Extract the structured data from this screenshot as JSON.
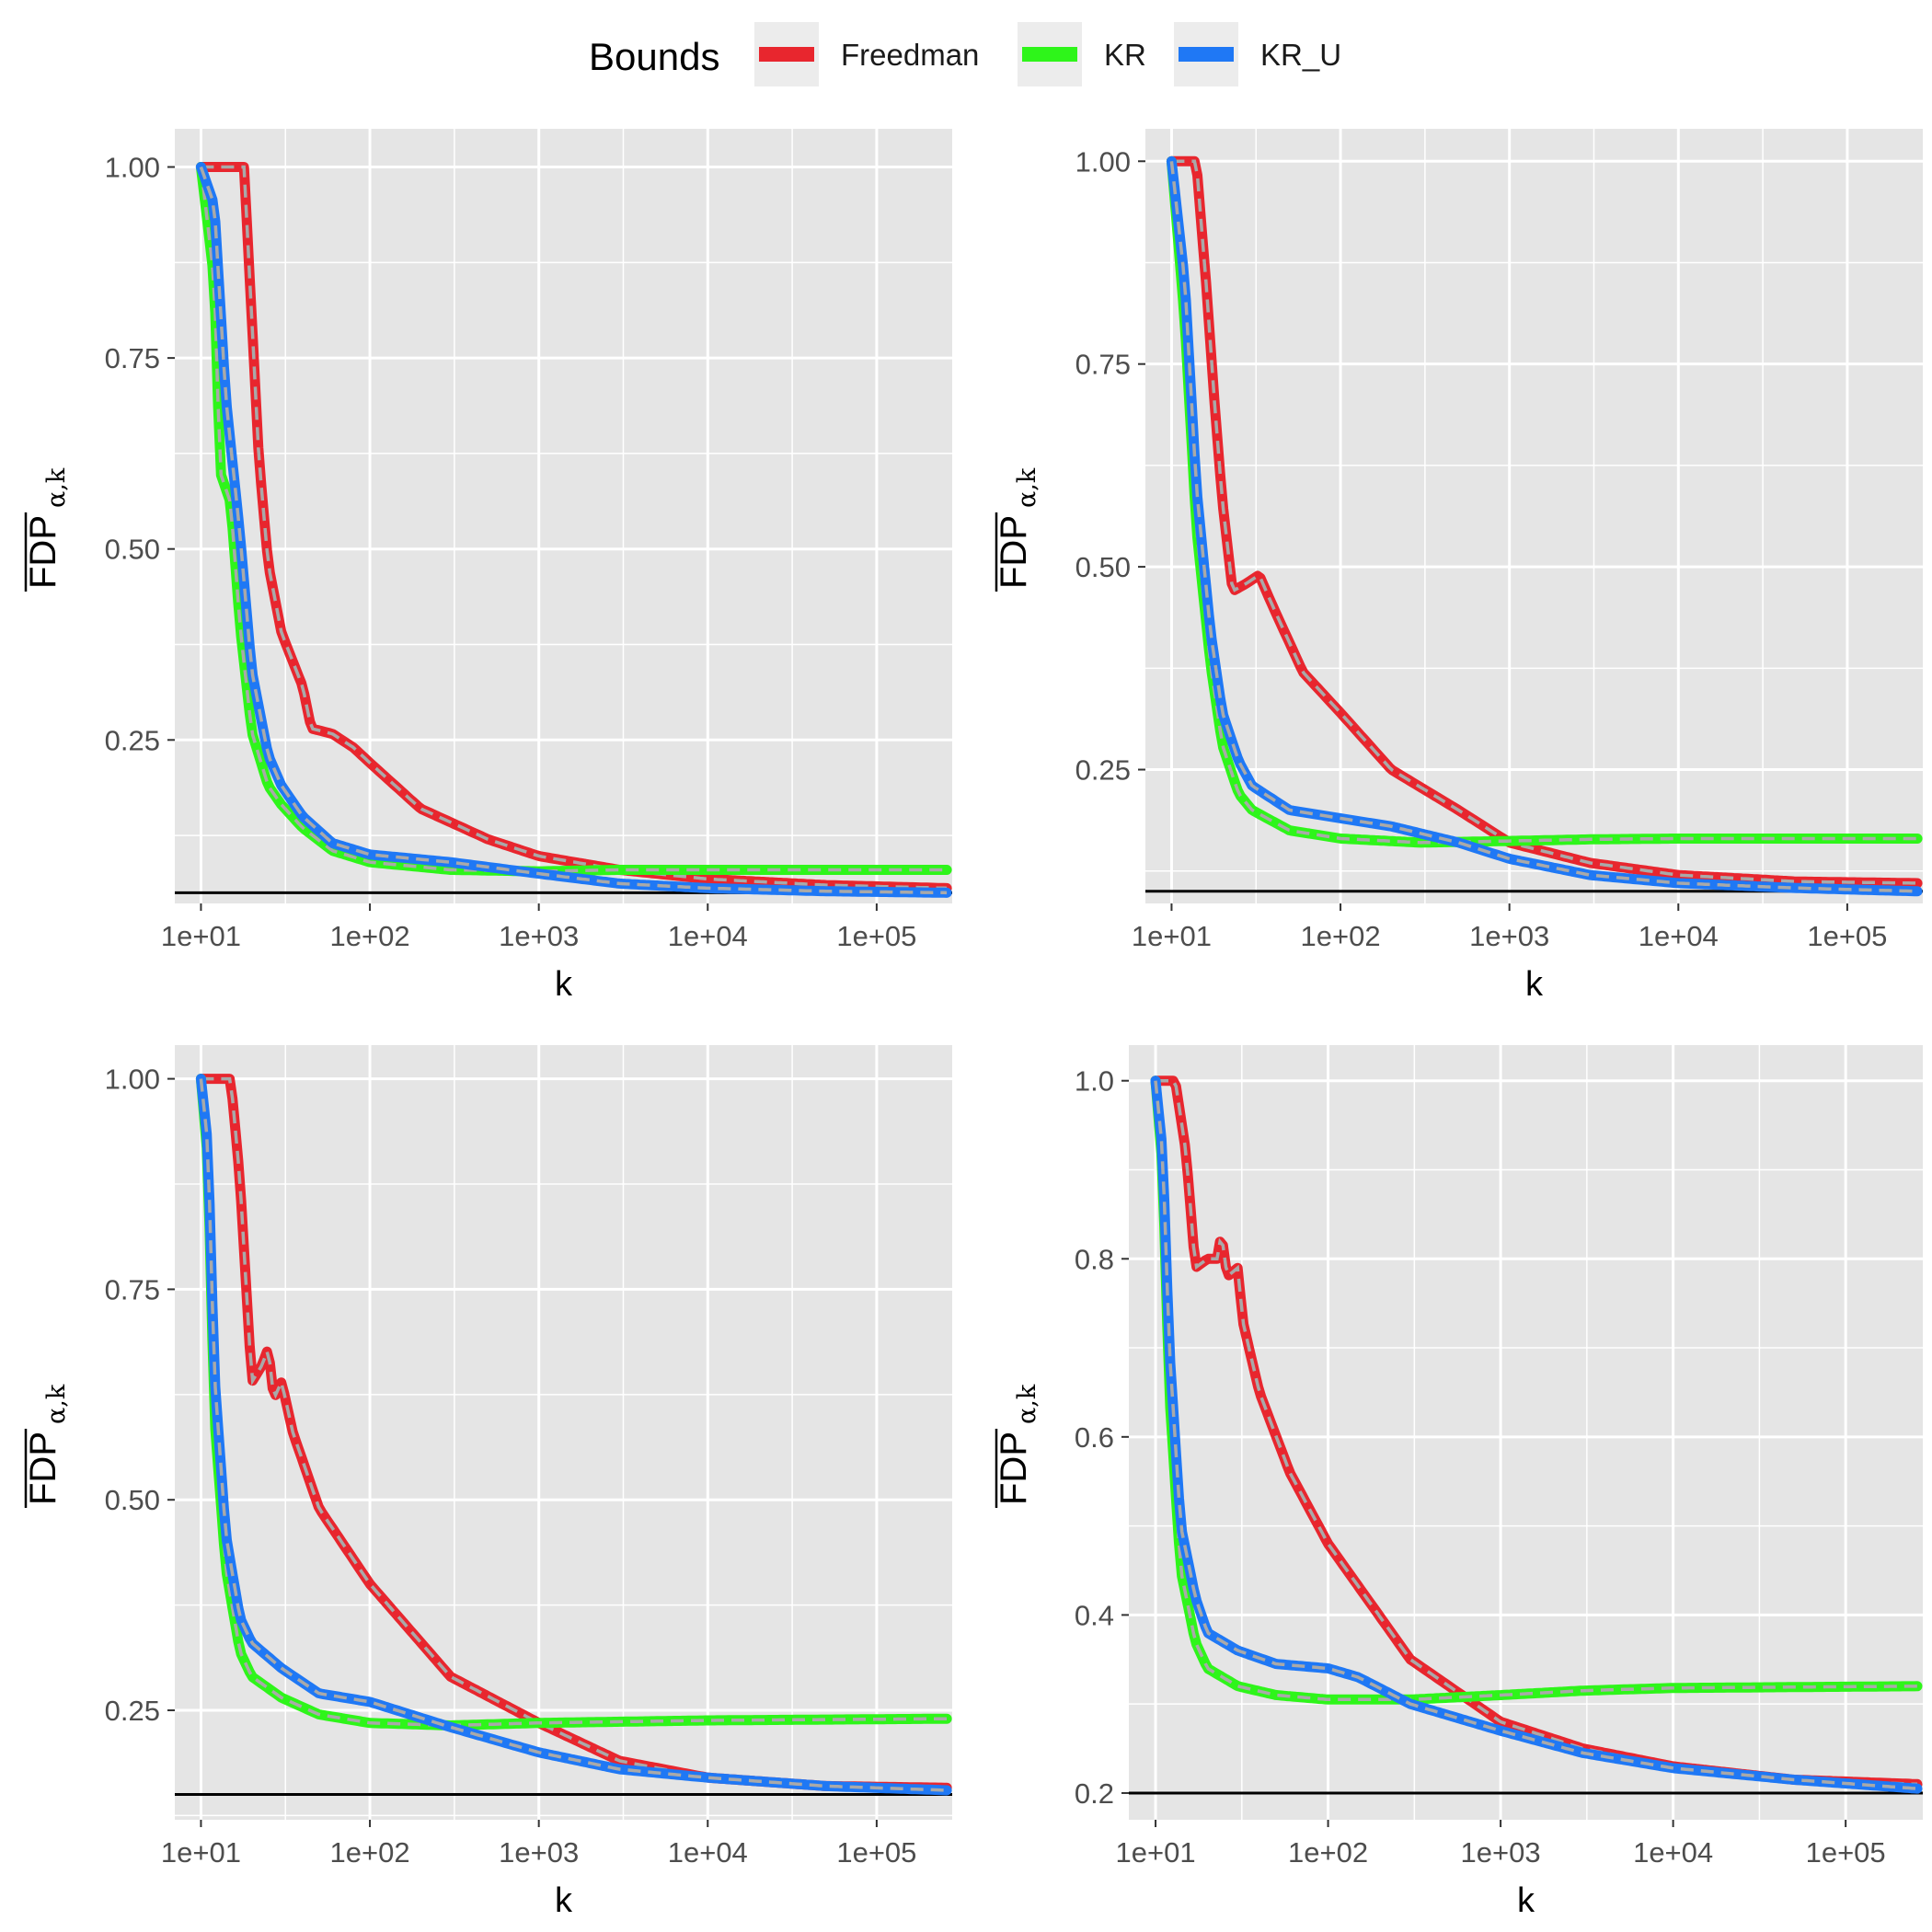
{
  "legend": {
    "title": "Bounds",
    "items": [
      {
        "label": "Freedman",
        "color": "#E8262E"
      },
      {
        "label": "KR",
        "color": "#2EF51A"
      },
      {
        "label": "KR_U",
        "color": "#1F78F5"
      }
    ]
  },
  "colors": {
    "panel_bg": "#E5E5E5",
    "grid": "#FFFFFF",
    "dashed_overlay": "#A9A9A9",
    "reference_line": "#000000",
    "background": "#FFFFFF"
  },
  "chart_data": [
    {
      "type": "line",
      "xscale": "log10",
      "xlim": [
        7,
        280000
      ],
      "ylim": [
        0.036,
        1.05
      ],
      "xlabel": "k",
      "ylabel": "FDP",
      "ylabel_subscript": "α,k",
      "x_ticks": [
        10,
        100,
        1000,
        10000,
        100000
      ],
      "x_tick_labels": [
        "1e+01",
        "1e+02",
        "1e+03",
        "1e+04",
        "1e+05"
      ],
      "y_ticks": [
        0.25,
        0.5,
        0.75,
        1.0
      ],
      "y_tick_labels": [
        "0.25",
        "0.50",
        "0.75",
        "1.00"
      ],
      "reference_line": 0.05,
      "grid": true,
      "series": [
        {
          "name": "Freedman",
          "points": [
            [
              10,
              1.0
            ],
            [
              18,
              1.0
            ],
            [
              20,
              0.8
            ],
            [
              22,
              0.62
            ],
            [
              25,
              0.48
            ],
            [
              30,
              0.39
            ],
            [
              40,
              0.32
            ],
            [
              45,
              0.265
            ],
            [
              60,
              0.258
            ],
            [
              80,
              0.24
            ],
            [
              100,
              0.22
            ],
            [
              200,
              0.16
            ],
            [
              500,
              0.12
            ],
            [
              1000,
              0.098
            ],
            [
              3000,
              0.08
            ],
            [
              10000,
              0.068
            ],
            [
              50000,
              0.06
            ],
            [
              260000,
              0.056
            ]
          ]
        },
        {
          "name": "KR",
          "points": [
            [
              10,
              1.0
            ],
            [
              12,
              0.85
            ],
            [
              13,
              0.6
            ],
            [
              15,
              0.56
            ],
            [
              17,
              0.4
            ],
            [
              20,
              0.26
            ],
            [
              25,
              0.19
            ],
            [
              30,
              0.165
            ],
            [
              40,
              0.135
            ],
            [
              60,
              0.105
            ],
            [
              100,
              0.09
            ],
            [
              300,
              0.08
            ],
            [
              1000,
              0.078
            ],
            [
              3000,
              0.08
            ],
            [
              10000,
              0.08
            ],
            [
              260000,
              0.08
            ]
          ]
        },
        {
          "name": "KR_U",
          "points": [
            [
              10,
              1.0
            ],
            [
              12,
              0.95
            ],
            [
              14,
              0.7
            ],
            [
              17,
              0.52
            ],
            [
              20,
              0.34
            ],
            [
              25,
              0.23
            ],
            [
              30,
              0.19
            ],
            [
              40,
              0.15
            ],
            [
              60,
              0.115
            ],
            [
              100,
              0.1
            ],
            [
              300,
              0.09
            ],
            [
              1000,
              0.075
            ],
            [
              3000,
              0.062
            ],
            [
              10000,
              0.056
            ],
            [
              50000,
              0.052
            ],
            [
              260000,
              0.05
            ]
          ]
        }
      ]
    },
    {
      "type": "line",
      "xscale": "log10",
      "xlim": [
        7,
        280000
      ],
      "ylim": [
        0.085,
        1.04
      ],
      "xlabel": "k",
      "ylabel": "FDP",
      "ylabel_subscript": "α,k",
      "x_ticks": [
        10,
        100,
        1000,
        10000,
        100000
      ],
      "x_tick_labels": [
        "1e+01",
        "1e+02",
        "1e+03",
        "1e+04",
        "1e+05"
      ],
      "y_ticks": [
        0.25,
        0.5,
        0.75,
        1.0
      ],
      "y_tick_labels": [
        "0.25",
        "0.50",
        "0.75",
        "1.00"
      ],
      "reference_line": 0.1,
      "grid": true,
      "series": [
        {
          "name": "Freedman",
          "points": [
            [
              10,
              1.0
            ],
            [
              14,
              1.0
            ],
            [
              16,
              0.85
            ],
            [
              18,
              0.7
            ],
            [
              20,
              0.58
            ],
            [
              23,
              0.47
            ],
            [
              28,
              0.48
            ],
            [
              33,
              0.49
            ],
            [
              40,
              0.45
            ],
            [
              60,
              0.37
            ],
            [
              100,
              0.32
            ],
            [
              200,
              0.25
            ],
            [
              500,
              0.2
            ],
            [
              1000,
              0.16
            ],
            [
              3000,
              0.135
            ],
            [
              10000,
              0.12
            ],
            [
              50000,
              0.112
            ],
            [
              260000,
              0.11
            ]
          ]
        },
        {
          "name": "KR",
          "points": [
            [
              10,
              1.0
            ],
            [
              12,
              0.8
            ],
            [
              14,
              0.55
            ],
            [
              17,
              0.38
            ],
            [
              20,
              0.28
            ],
            [
              25,
              0.22
            ],
            [
              30,
              0.2
            ],
            [
              50,
              0.175
            ],
            [
              100,
              0.165
            ],
            [
              300,
              0.16
            ],
            [
              1000,
              0.162
            ],
            [
              3000,
              0.164
            ],
            [
              10000,
              0.165
            ],
            [
              260000,
              0.165
            ]
          ]
        },
        {
          "name": "KR_U",
          "points": [
            [
              10,
              1.0
            ],
            [
              12,
              0.85
            ],
            [
              14,
              0.6
            ],
            [
              17,
              0.42
            ],
            [
              20,
              0.32
            ],
            [
              25,
              0.26
            ],
            [
              30,
              0.23
            ],
            [
              50,
              0.2
            ],
            [
              100,
              0.19
            ],
            [
              200,
              0.18
            ],
            [
              500,
              0.16
            ],
            [
              1000,
              0.14
            ],
            [
              3000,
              0.12
            ],
            [
              10000,
              0.11
            ],
            [
              50000,
              0.104
            ],
            [
              260000,
              0.1
            ]
          ]
        }
      ]
    },
    {
      "type": "line",
      "xscale": "log10",
      "xlim": [
        7,
        280000
      ],
      "ylim": [
        0.12,
        1.04
      ],
      "xlabel": "k",
      "ylabel": "FDP",
      "ylabel_subscript": "α,k",
      "x_ticks": [
        10,
        100,
        1000,
        10000,
        100000
      ],
      "x_tick_labels": [
        "1e+01",
        "1e+02",
        "1e+03",
        "1e+04",
        "1e+05"
      ],
      "y_ticks": [
        0.25,
        0.5,
        0.75,
        1.0
      ],
      "y_tick_labels": [
        "0.25",
        "0.50",
        "0.75",
        "1.00"
      ],
      "reference_line": 0.15,
      "grid": true,
      "series": [
        {
          "name": "Freedman",
          "points": [
            [
              10,
              1.0
            ],
            [
              15,
              1.0
            ],
            [
              17,
              0.88
            ],
            [
              20,
              0.64
            ],
            [
              23,
              0.66
            ],
            [
              25,
              0.68
            ],
            [
              27,
              0.62
            ],
            [
              30,
              0.64
            ],
            [
              35,
              0.58
            ],
            [
              50,
              0.49
            ],
            [
              100,
              0.4
            ],
            [
              300,
              0.29
            ],
            [
              1000,
              0.235
            ],
            [
              3000,
              0.19
            ],
            [
              10000,
              0.17
            ],
            [
              50000,
              0.16
            ],
            [
              260000,
              0.158
            ]
          ]
        },
        {
          "name": "KR",
          "points": [
            [
              10,
              1.0
            ],
            [
              11,
              0.9
            ],
            [
              12,
              0.6
            ],
            [
              14,
              0.42
            ],
            [
              17,
              0.32
            ],
            [
              20,
              0.29
            ],
            [
              30,
              0.265
            ],
            [
              50,
              0.245
            ],
            [
              100,
              0.235
            ],
            [
              300,
              0.232
            ],
            [
              1000,
              0.235
            ],
            [
              10000,
              0.238
            ],
            [
              260000,
              0.24
            ]
          ]
        },
        {
          "name": "KR_U",
          "points": [
            [
              10,
              1.0
            ],
            [
              11,
              0.92
            ],
            [
              12,
              0.65
            ],
            [
              14,
              0.46
            ],
            [
              17,
              0.36
            ],
            [
              20,
              0.33
            ],
            [
              30,
              0.3
            ],
            [
              50,
              0.27
            ],
            [
              100,
              0.26
            ],
            [
              300,
              0.23
            ],
            [
              1000,
              0.2
            ],
            [
              3000,
              0.18
            ],
            [
              10000,
              0.17
            ],
            [
              50000,
              0.16
            ],
            [
              260000,
              0.155
            ]
          ]
        }
      ]
    },
    {
      "type": "line",
      "xscale": "log10",
      "xlim": [
        7,
        280000
      ],
      "ylim": [
        0.17,
        1.04
      ],
      "xlabel": "k",
      "ylabel": "FDP",
      "ylabel_subscript": "α,k",
      "x_ticks": [
        10,
        100,
        1000,
        10000,
        100000
      ],
      "x_tick_labels": [
        "1e+01",
        "1e+02",
        "1e+03",
        "1e+04",
        "1e+05"
      ],
      "y_ticks": [
        0.2,
        0.4,
        0.6,
        0.8,
        1.0
      ],
      "y_tick_labels": [
        "0.2",
        "0.4",
        "0.6",
        "0.8",
        "1.0"
      ],
      "reference_line": 0.2,
      "grid": true,
      "series": [
        {
          "name": "Freedman",
          "points": [
            [
              10,
              1.0
            ],
            [
              13,
              1.0
            ],
            [
              15,
              0.92
            ],
            [
              17,
              0.79
            ],
            [
              20,
              0.8
            ],
            [
              23,
              0.8
            ],
            [
              24,
              0.83
            ],
            [
              26,
              0.78
            ],
            [
              30,
              0.79
            ],
            [
              32,
              0.73
            ],
            [
              40,
              0.65
            ],
            [
              60,
              0.56
            ],
            [
              100,
              0.48
            ],
            [
              300,
              0.35
            ],
            [
              1000,
              0.28
            ],
            [
              3000,
              0.25
            ],
            [
              10000,
              0.23
            ],
            [
              50000,
              0.215
            ],
            [
              260000,
              0.21
            ]
          ]
        },
        {
          "name": "KR",
          "points": [
            [
              10,
              1.0
            ],
            [
              11,
              0.9
            ],
            [
              12,
              0.65
            ],
            [
              14,
              0.45
            ],
            [
              17,
              0.37
            ],
            [
              20,
              0.34
            ],
            [
              30,
              0.32
            ],
            [
              50,
              0.31
            ],
            [
              100,
              0.305
            ],
            [
              300,
              0.305
            ],
            [
              1000,
              0.31
            ],
            [
              3000,
              0.315
            ],
            [
              10000,
              0.318
            ],
            [
              260000,
              0.32
            ]
          ]
        },
        {
          "name": "KR_U",
          "points": [
            [
              10,
              1.0
            ],
            [
              11,
              0.92
            ],
            [
              12,
              0.7
            ],
            [
              14,
              0.5
            ],
            [
              17,
              0.42
            ],
            [
              20,
              0.38
            ],
            [
              30,
              0.36
            ],
            [
              50,
              0.345
            ],
            [
              100,
              0.34
            ],
            [
              150,
              0.33
            ],
            [
              300,
              0.3
            ],
            [
              1000,
              0.27
            ],
            [
              3000,
              0.245
            ],
            [
              10000,
              0.228
            ],
            [
              50000,
              0.215
            ],
            [
              260000,
              0.205
            ]
          ]
        }
      ]
    }
  ]
}
